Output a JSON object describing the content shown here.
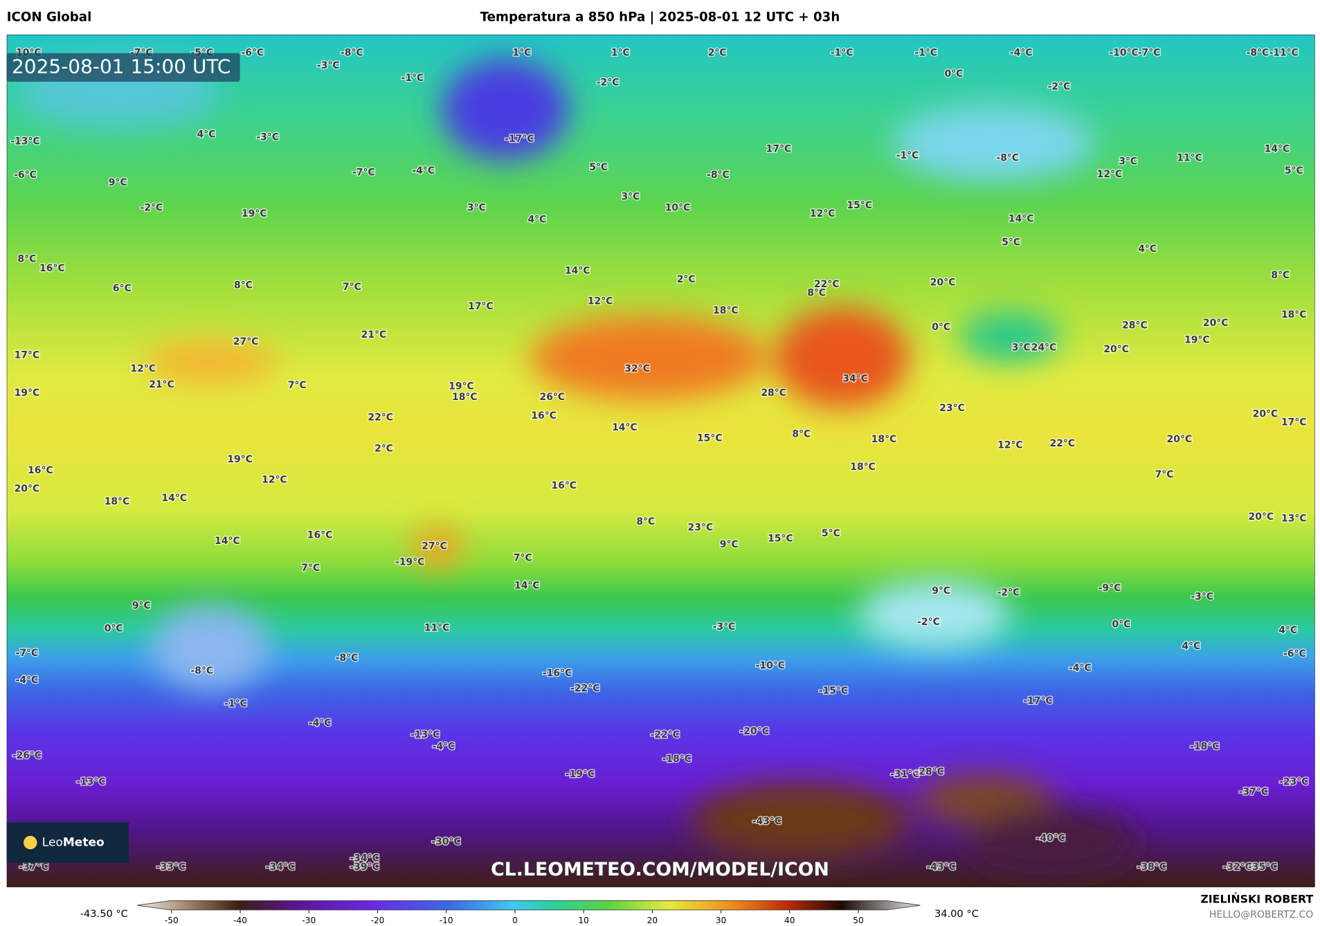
{
  "header": {
    "model": "ICON Global",
    "title": "Temperatura a 850 hPa | 2025-08-01 12 UTC + 03h"
  },
  "map": {
    "timestamp": "2025-08-01 15:00 UTC",
    "watermark": "CL.LEOMETEO.COM/MODEL/ICON",
    "logo": {
      "light": "Leo",
      "bold": "Meteo"
    },
    "labels": [
      "10°C",
      "-7°C",
      "-5°C",
      "-6°C",
      "-8°C",
      "-3°C",
      "1°C",
      "1°C",
      "2°C",
      "-1°C",
      "-1°C",
      "-4°C",
      "-10°C",
      "-7°C",
      "-8°C",
      "-11°C",
      "-1°C",
      "-2°C",
      "0°C",
      "-2°C",
      "-13°C",
      "4°C",
      "-3°C",
      "-17°C",
      "-1°C",
      "-8°C",
      "3°C",
      "11°C",
      "14°C",
      "-6°C",
      "9°C",
      "-7°C",
      "-4°C",
      "5°C",
      "-8°C",
      "17°C",
      "12°C",
      "5°C",
      "-2°C",
      "19°C",
      "3°C",
      "3°C",
      "4°C",
      "10°C",
      "12°C",
      "15°C",
      "14°C",
      "8°C",
      "16°C",
      "6°C",
      "8°C",
      "7°C",
      "14°C",
      "5°C",
      "4°C",
      "8°C",
      "12°C",
      "17°C",
      "22°C",
      "20°C",
      "2°C",
      "8°C",
      "18°C",
      "0°C",
      "28°C",
      "20°C",
      "18°C",
      "19°C",
      "17°C",
      "27°C",
      "21°C",
      "12°C",
      "21°C",
      "32°C",
      "34°C",
      "3°C",
      "24°C",
      "20°C",
      "19°C",
      "7°C",
      "19°C",
      "18°C",
      "26°C",
      "28°C",
      "16°C",
      "22°C",
      "23°C",
      "20°C",
      "17°C",
      "14°C",
      "15°C",
      "8°C",
      "18°C",
      "12°C",
      "22°C",
      "20°C",
      "2°C",
      "16°C",
      "19°C",
      "12°C",
      "18°C",
      "20°C",
      "18°C",
      "14°C",
      "16°C",
      "7°C",
      "8°C",
      "23°C",
      "15°C",
      "5°C",
      "20°C",
      "13°C",
      "16°C",
      "14°C",
      "9°C",
      "27°C",
      "-19°C",
      "7°C",
      "7°C",
      "14°C",
      "9°C",
      "-2°C",
      "-9°C",
      "-3°C",
      "9°C",
      "0°C",
      "11°C",
      "-3°C",
      "-2°C",
      "0°C",
      "4°C",
      "-7°C",
      "-8°C",
      "4°C",
      "-6°C",
      "-4°C",
      "-8°C",
      "-16°C",
      "-10°C",
      "-4°C",
      "-22°C",
      "-15°C",
      "-17°C",
      "-1°C",
      "-4°C",
      "-13°C",
      "-4°C",
      "-22°C",
      "-20°C",
      "-18°C",
      "-26°C",
      "-18°C",
      "-13°C",
      "-19°C",
      "-31°C",
      "-28°C",
      "-37°C",
      "-23°C",
      "-43°C",
      "-40°C",
      "-30°C",
      "-34°C",
      "-39°C",
      "-37°C",
      "-33°C",
      "-34°C",
      "-43°C",
      "-38°C",
      "-32°C",
      "-35°C"
    ]
  },
  "colorbar": {
    "min_label": "-43.50 °C",
    "max_label": "34.00 °C",
    "lim": [
      -55,
      59
    ],
    "ticks": [
      -50,
      -40,
      -30,
      -20,
      -10,
      0,
      10,
      20,
      30,
      40,
      50
    ]
  },
  "footer": {
    "author": "ZIELIŃSKI ROBERT",
    "email": "HELLO@ROBERTZ.CO"
  }
}
